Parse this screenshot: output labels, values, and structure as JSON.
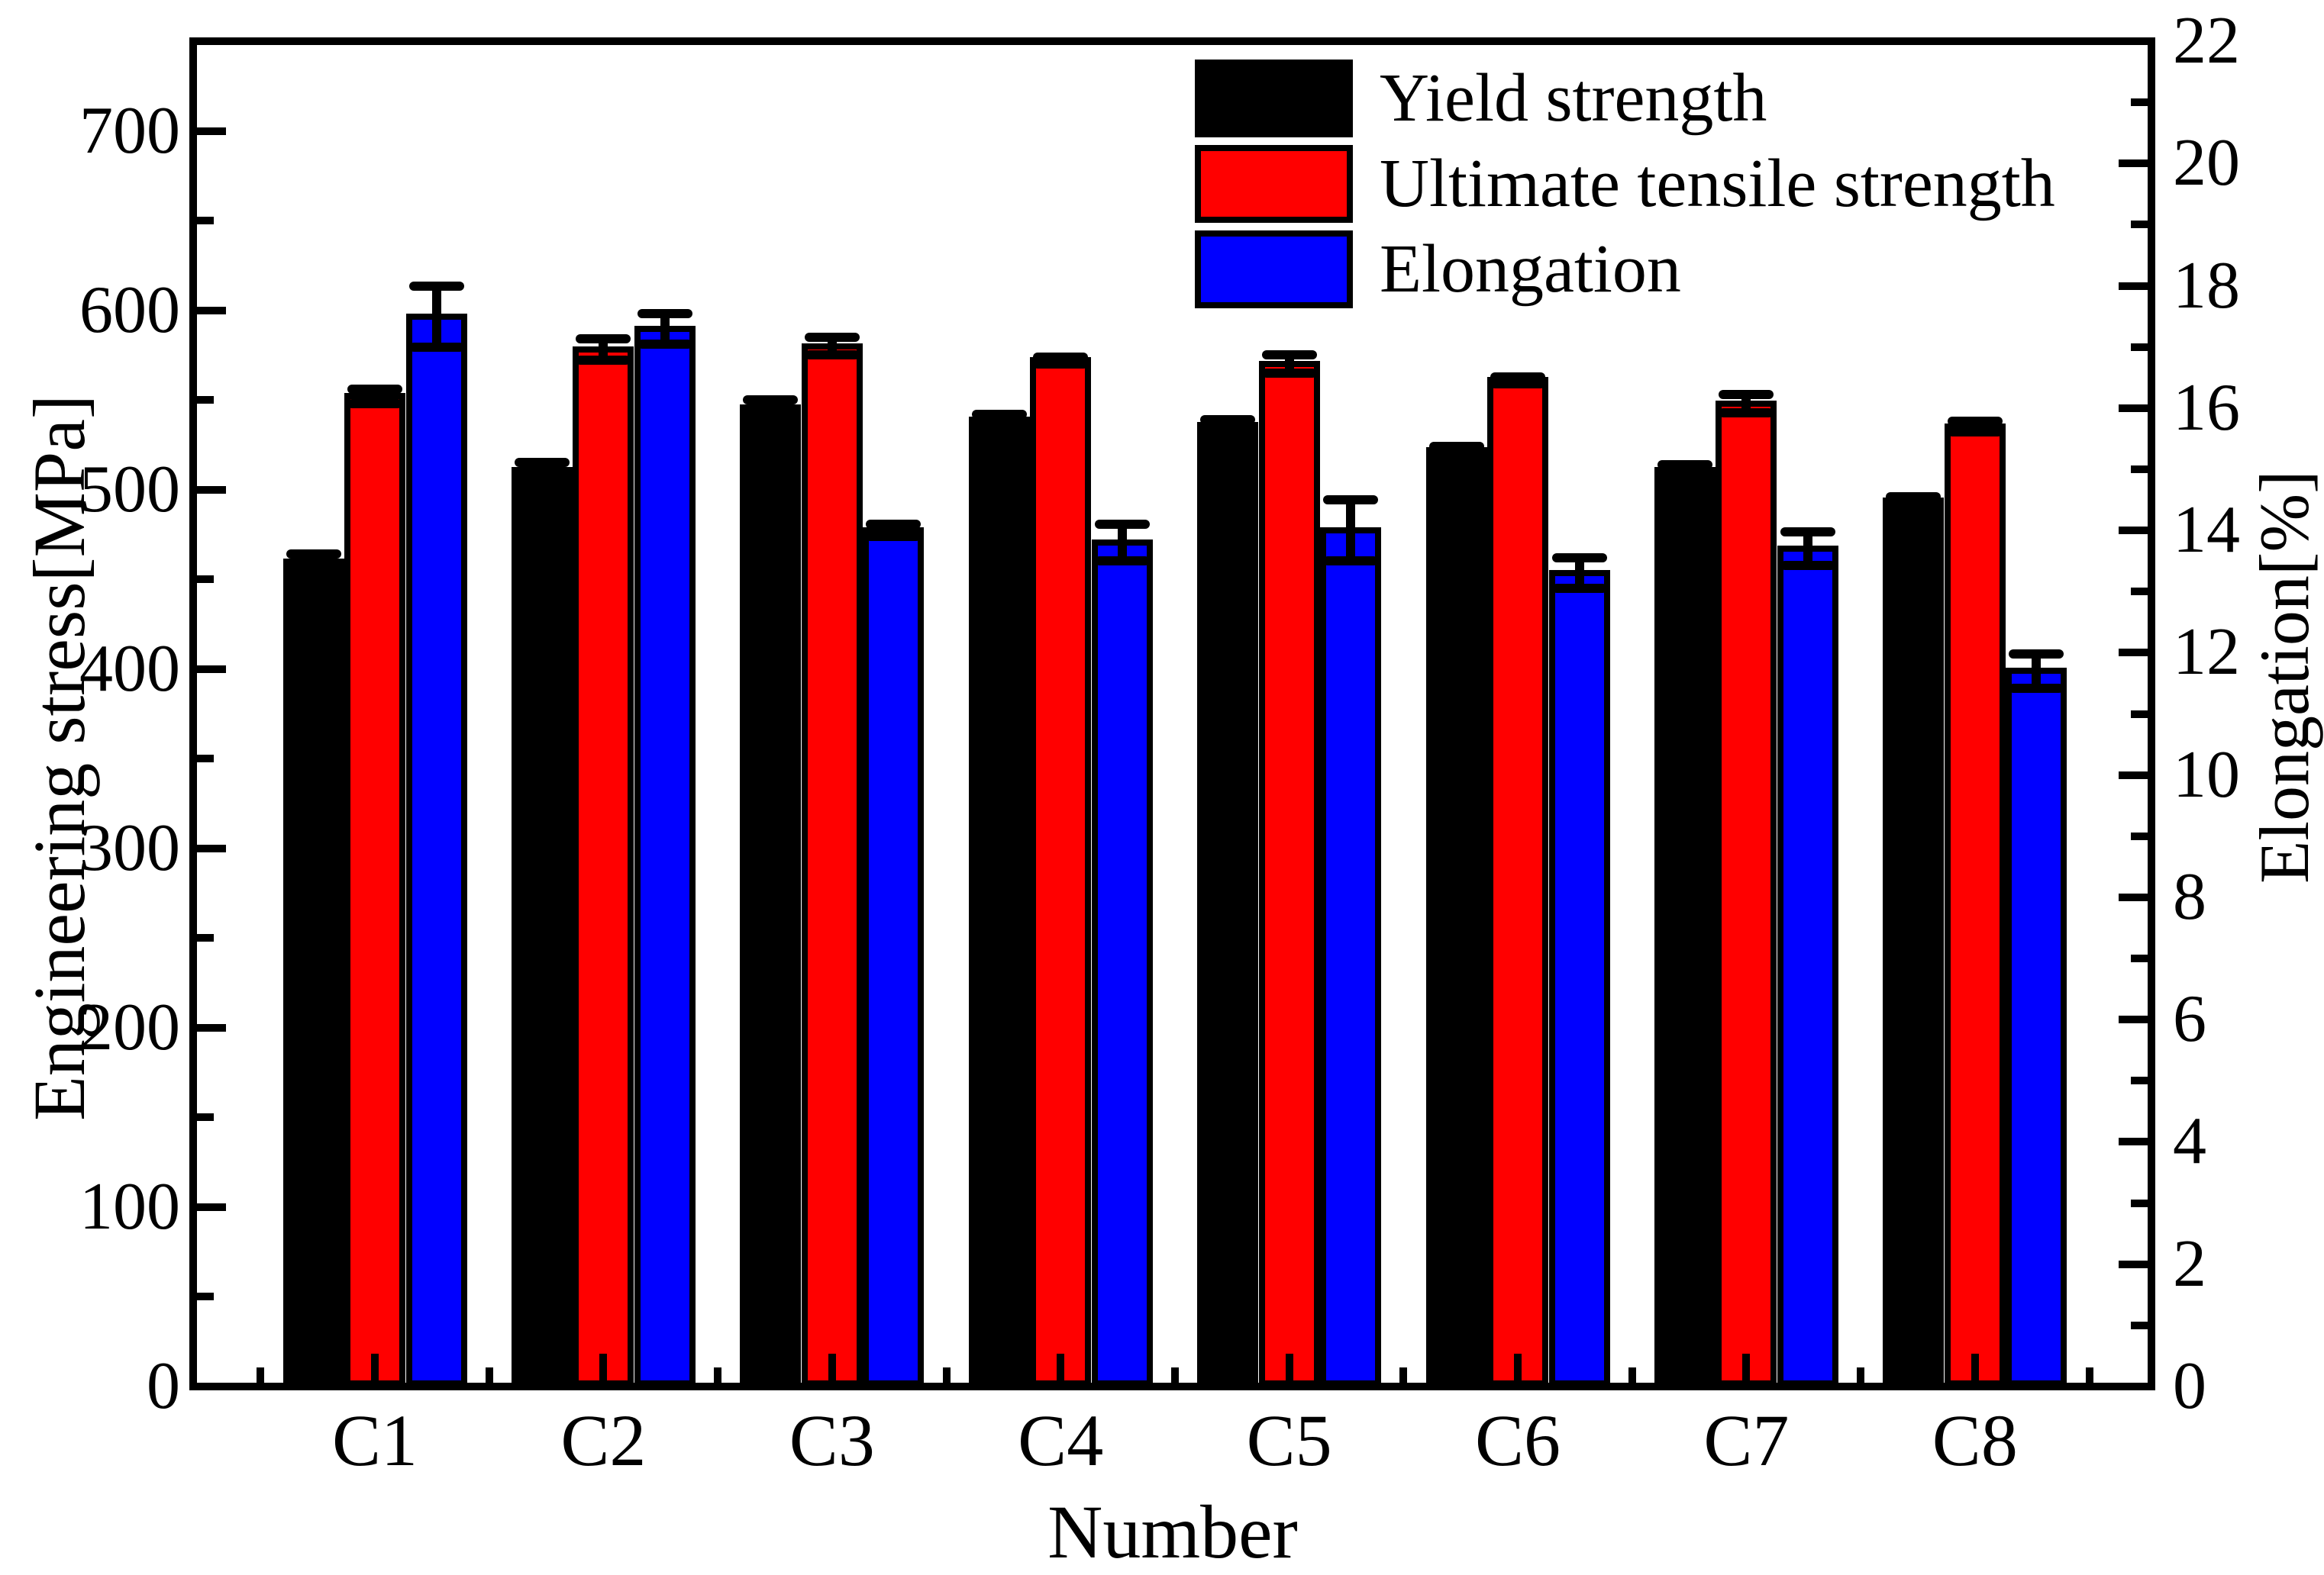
{
  "axes": {
    "x": {
      "title": "Number",
      "categories": [
        "C1",
        "C2",
        "C3",
        "C4",
        "C5",
        "C6",
        "C7",
        "C8"
      ]
    },
    "y_left": {
      "title": "Engineering stress[MPa]",
      "min": 0,
      "max": 750,
      "major_step": 100,
      "minor_step": 50,
      "tick_labels": [
        "0",
        "100",
        "200",
        "300",
        "400",
        "500",
        "600",
        "700"
      ]
    },
    "y_right": {
      "title": "Elongation[%]",
      "min": 0,
      "max": 22,
      "major_step": 2,
      "minor_step": 1,
      "tick_labels": [
        "0",
        "2",
        "4",
        "6",
        "8",
        "10",
        "12",
        "14",
        "16",
        "18",
        "20",
        "22"
      ]
    }
  },
  "legend": {
    "items": [
      {
        "label": "Yield strength",
        "color": "#000000"
      },
      {
        "label": "Ultimate tensile strength",
        "color": "#ff0000"
      },
      {
        "label": "Elongation",
        "color": "#0000ff"
      }
    ]
  },
  "chart_data": {
    "type": "bar",
    "title": "",
    "xlabel": "Number",
    "ylabel_left": "Engineering stress[MPa]",
    "ylabel_right": "Elongation[%]",
    "categories": [
      "C1",
      "C2",
      "C3",
      "C4",
      "C5",
      "C6",
      "C7",
      "C8"
    ],
    "series": [
      {
        "name": "Yield strength",
        "axis": "left",
        "unit": "MPa",
        "color": "#000000",
        "values": [
          460,
          511,
          546,
          539,
          536,
          522,
          511,
          494
        ],
        "errors": [
          4,
          4,
          4,
          3,
          3,
          2,
          3,
          2
        ]
      },
      {
        "name": "Ultimate tensile strength",
        "axis": "left",
        "unit": "MPa",
        "color": "#ff0000",
        "values": [
          552,
          578,
          580,
          572,
          570,
          561,
          548,
          535
        ],
        "errors": [
          4,
          6,
          5,
          2,
          5,
          2,
          5,
          3
        ]
      },
      {
        "name": "Elongation",
        "axis": "right",
        "unit": "%",
        "color": "#0000ff",
        "values": [
          17.5,
          17.3,
          14.0,
          13.8,
          14.0,
          13.3,
          13.7,
          11.7
        ],
        "errors": [
          0.5,
          0.25,
          0.1,
          0.3,
          0.5,
          0.25,
          0.27,
          0.28
        ]
      }
    ],
    "ylim_left": [
      0,
      750
    ],
    "ylim_right": [
      0,
      22
    ],
    "grid": false,
    "legend_position": "top-center",
    "error_bars": true
  }
}
